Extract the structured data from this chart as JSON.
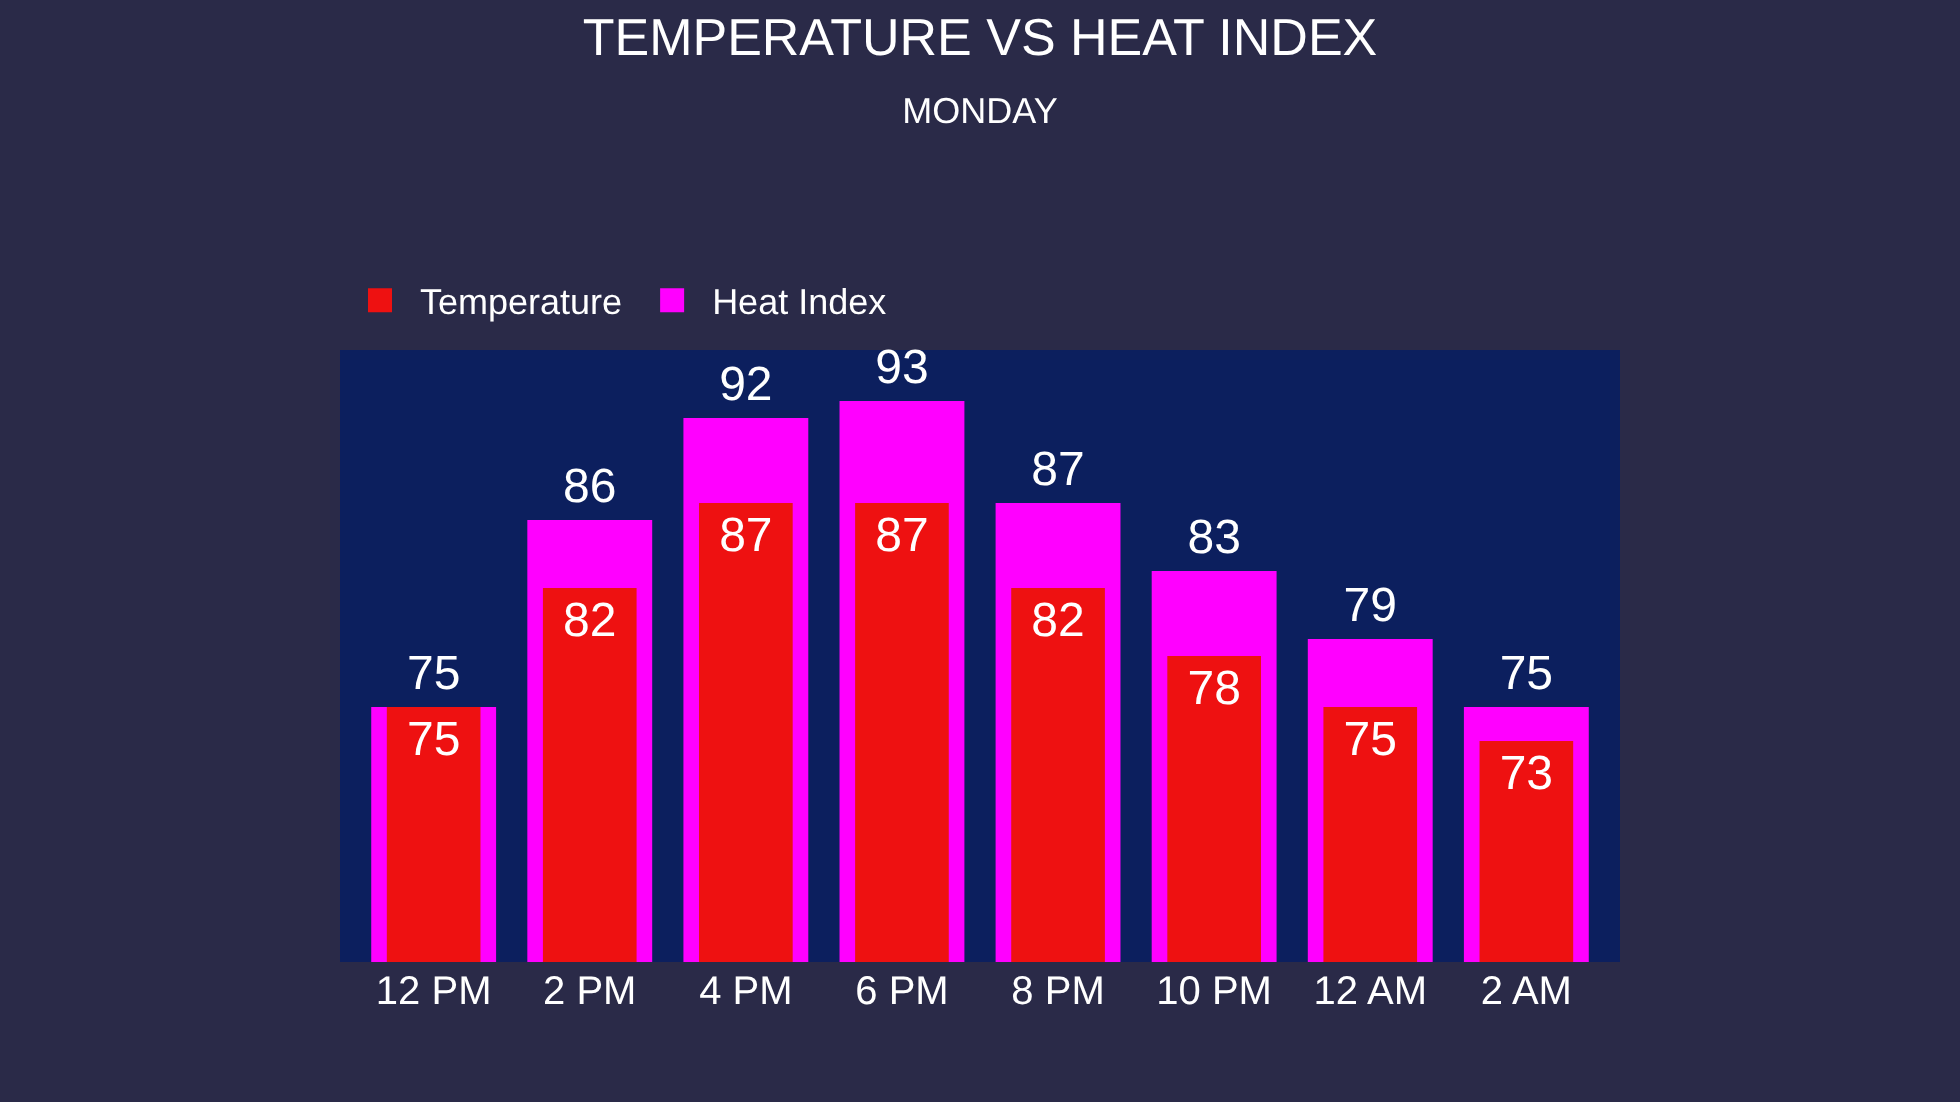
{
  "chart_data": {
    "type": "bar",
    "title": "TEMPERATURE VS HEAT INDEX",
    "subtitle": "MONDAY",
    "categories": [
      "12 PM",
      "2 PM",
      "4 PM",
      "6 PM",
      "8 PM",
      "10 PM",
      "12 AM",
      "2 AM"
    ],
    "series": [
      {
        "name": "Heat Index",
        "color": "#ff00ff",
        "values": [
          75,
          86,
          92,
          93,
          87,
          83,
          79,
          75
        ]
      },
      {
        "name": "Temperature",
        "color": "#ee1111",
        "values": [
          75,
          82,
          87,
          87,
          82,
          78,
          75,
          73
        ]
      }
    ],
    "ylim": [
      60,
      96
    ],
    "tick_labels": "x",
    "data_labels": true,
    "legend": "top left",
    "grid": false
  }
}
